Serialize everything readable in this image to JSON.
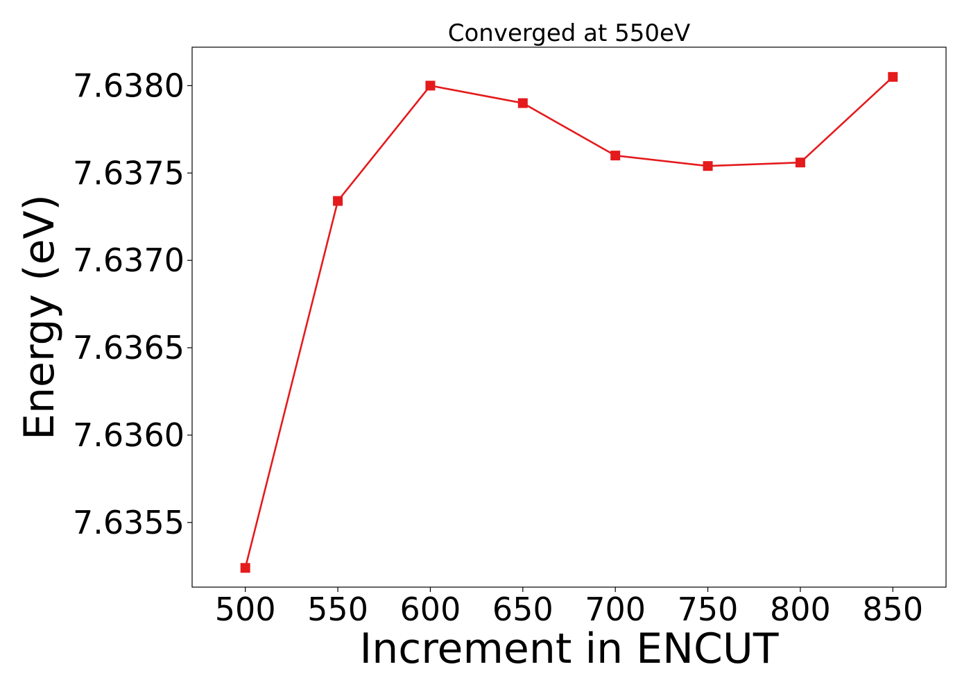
{
  "chart_data": {
    "type": "line",
    "title": "Converged at 550eV",
    "xlabel": "Increment in ENCUT",
    "ylabel": "Energy (eV)",
    "x": [
      500,
      550,
      600,
      650,
      700,
      750,
      800,
      850
    ],
    "x_ticks": [
      "500",
      "550",
      "600",
      "650",
      "700",
      "750",
      "800",
      "850"
    ],
    "y_ticks": [
      "7.6355",
      "7.6360",
      "7.6365",
      "7.6370",
      "7.6375",
      "7.6380"
    ],
    "y_tick_values": [
      7.6355,
      7.636,
      7.6365,
      7.637,
      7.6375,
      7.638
    ],
    "xlim": [
      471.25,
      878.75
    ],
    "ylim": [
      7.63513,
      7.63822
    ],
    "series": [
      {
        "values": [
          7.63524,
          7.63734,
          7.638,
          7.6379,
          7.6376,
          7.63754,
          7.63756,
          7.63805
        ],
        "color": "#e41a1c",
        "marker": "square"
      }
    ],
    "grid": false
  }
}
